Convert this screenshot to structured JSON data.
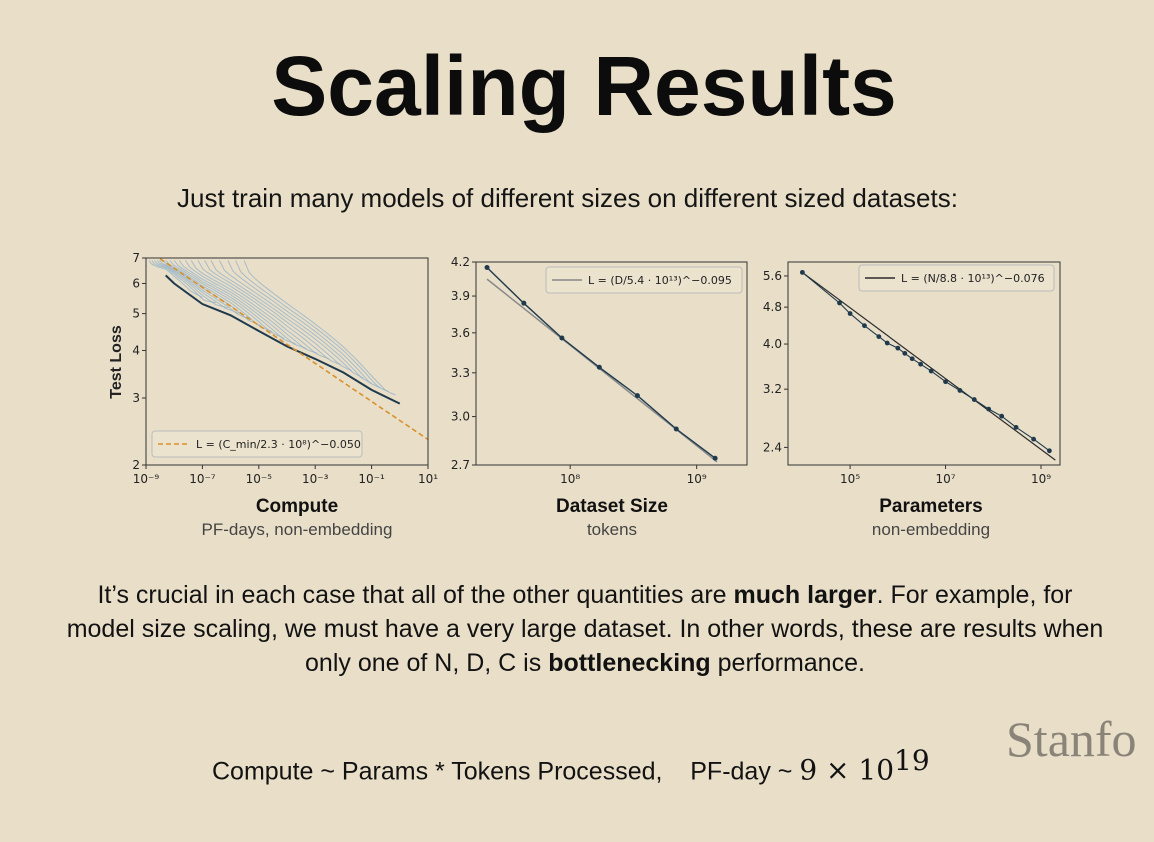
{
  "slide": {
    "title": "Scaling Results",
    "subtitle": "Just train many models of different sizes on different sized datasets:",
    "body_part1": "It’s crucial in each case that all of the other quantities are ",
    "body_bold1": "much larger",
    "body_part2": ".  For example, for model size scaling, we must have a very large dataset.  In other words, these are results when only one of N, D, C is ",
    "body_bold2": "bottlenecking",
    "body_part3": " performance.",
    "bottom_left": "Compute ~ Params * Tokens Processed,",
    "bottom_right_prefix": "PF-day ~ ",
    "bottom_math": "9 × 10",
    "bottom_exp": "19",
    "logo": "Stanfo"
  },
  "colors": {
    "background": "#e9dfc9",
    "line_dark": "#1f3a4d",
    "fit_orange": "#d9912c",
    "fit_gray": "#888888",
    "curve_blue": "#8fb0c8"
  },
  "chart_data": [
    {
      "type": "line",
      "xscale": "log",
      "yscale": "log",
      "xlim": [
        1e-09,
        10
      ],
      "ylim": [
        2,
        7
      ],
      "ylabel": "Test Loss",
      "xlabel": "Compute",
      "xlabel_sub": "PF-days, non-embedding",
      "x_ticks": [
        "10⁻⁹",
        "10⁻⁷",
        "10⁻⁵",
        "10⁻³",
        "10⁻¹",
        "10¹"
      ],
      "y_ticks": [
        "2",
        "3",
        "4",
        "5",
        "6",
        "7"
      ],
      "legend_location": "bottom-left",
      "legend": "L = (C_min/2.3 · 10⁸)^−0.050",
      "fit": {
        "scale": 230000000.0,
        "exponent": -0.05
      },
      "frontier": {
        "x": [
          5e-09,
          1e-08,
          1e-07,
          1e-06,
          1e-05,
          0.0001,
          0.001,
          0.01,
          0.1,
          1
        ],
        "y": [
          6.3,
          6.0,
          5.3,
          4.95,
          4.5,
          4.1,
          3.8,
          3.5,
          3.15,
          2.9
        ]
      },
      "curves": [
        {
          "start": 1.3e-09,
          "y0": 6.9,
          "end": 1e-07
        },
        {
          "start": 1.6e-09,
          "y0": 6.9,
          "end": 3e-07
        },
        {
          "start": 2e-09,
          "y0": 6.9,
          "end": 8e-07
        },
        {
          "start": 2.5e-09,
          "y0": 6.9,
          "end": 2e-06
        },
        {
          "start": 3e-09,
          "y0": 6.9,
          "end": 5e-06
        },
        {
          "start": 4e-09,
          "y0": 6.9,
          "end": 1.2e-05
        },
        {
          "start": 5e-09,
          "y0": 6.9,
          "end": 3e-05
        },
        {
          "start": 7e-09,
          "y0": 6.9,
          "end": 8e-05
        },
        {
          "start": 1e-08,
          "y0": 6.9,
          "end": 0.0002
        },
        {
          "start": 1.5e-08,
          "y0": 6.9,
          "end": 0.0005
        },
        {
          "start": 2.5e-08,
          "y0": 6.9,
          "end": 0.0012
        },
        {
          "start": 4e-08,
          "y0": 6.9,
          "end": 0.003
        },
        {
          "start": 7e-08,
          "y0": 6.9,
          "end": 0.008
        },
        {
          "start": 1.2e-07,
          "y0": 6.9,
          "end": 0.02
        },
        {
          "start": 2e-07,
          "y0": 6.9,
          "end": 0.05
        },
        {
          "start": 4e-07,
          "y0": 6.9,
          "end": 0.1
        },
        {
          "start": 8e-07,
          "y0": 6.9,
          "end": 0.2
        },
        {
          "start": 1.5e-06,
          "y0": 6.9,
          "end": 0.4
        },
        {
          "start": 3e-06,
          "y0": 6.9,
          "end": 0.7
        }
      ]
    },
    {
      "type": "line",
      "xscale": "log",
      "yscale": "log",
      "xlim": [
        18000000.0,
        2500000000.0
      ],
      "ylim": [
        2.7,
        4.2
      ],
      "xlabel": "Dataset Size",
      "xlabel_sub": "tokens",
      "x_ticks": [
        "10⁸",
        "10⁹"
      ],
      "y_ticks": [
        "2.7",
        "3.0",
        "3.3",
        "3.6",
        "3.9",
        "4.2"
      ],
      "legend_location": "top-right",
      "legend": "L = (D/5.4 · 10¹³)^−0.095",
      "fit": {
        "scale": 54000000000000.0,
        "exponent": -0.095
      },
      "x": [
        22000000.0,
        43000000.0,
        86000000.0,
        170000000.0,
        340000000.0,
        690000000.0,
        1400000000.0
      ],
      "y": [
        4.15,
        3.84,
        3.56,
        3.34,
        3.14,
        2.92,
        2.74
      ]
    },
    {
      "type": "scatter",
      "xscale": "log",
      "yscale": "log",
      "xlim": [
        5000.0,
        2500000000.0
      ],
      "ylim": [
        2.2,
        6.0
      ],
      "xlabel": "Parameters",
      "xlabel_sub": "non-embedding",
      "x_ticks": [
        "10⁵",
        "10⁷",
        "10⁹"
      ],
      "y_ticks": [
        "2.4",
        "3.2",
        "4.0",
        "4.8",
        "5.6"
      ],
      "legend_location": "top-right",
      "legend": "L = (N/8.8 · 10¹³)^−0.076",
      "fit": {
        "scale": 88000000000000.0,
        "exponent": -0.076
      },
      "x": [
        10000.0,
        60000.0,
        100000.0,
        200000.0,
        400000.0,
        600000.0,
        1000000.0,
        1400000.0,
        2000000.0,
        3000000.0,
        5000000.0,
        10000000.0,
        20000000.0,
        40000000.0,
        80000000.0,
        150000000.0,
        300000000.0,
        700000000.0,
        1500000000.0
      ],
      "y": [
        5.7,
        4.9,
        4.65,
        4.38,
        4.15,
        4.02,
        3.92,
        3.82,
        3.72,
        3.62,
        3.5,
        3.32,
        3.18,
        3.04,
        2.9,
        2.8,
        2.65,
        2.5,
        2.36
      ]
    }
  ]
}
